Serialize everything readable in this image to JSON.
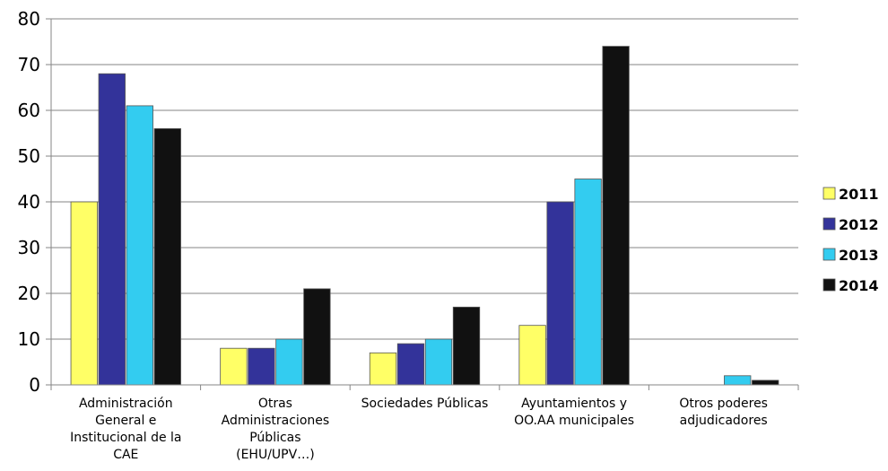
{
  "chart_data": {
    "type": "bar",
    "categories": [
      [
        "Administración",
        "General e",
        "Institucional de la",
        "CAE"
      ],
      [
        "Otras",
        "Administraciones",
        "Públicas",
        "(EHU/UPV…)"
      ],
      [
        "Sociedades Públicas"
      ],
      [
        "Ayuntamientos y",
        "OO.AA municipales"
      ],
      [
        "Otros poderes",
        "adjudicadores"
      ]
    ],
    "series": [
      {
        "name": "2011",
        "values": [
          40,
          8,
          7,
          13,
          0
        ],
        "color": "#ffff66"
      },
      {
        "name": "2012",
        "values": [
          68,
          8,
          9,
          40,
          0
        ],
        "color": "#33339a"
      },
      {
        "name": "2013",
        "values": [
          61,
          10,
          10,
          45,
          2
        ],
        "color": "#33ccf0"
      },
      {
        "name": "2014",
        "values": [
          56,
          21,
          17,
          74,
          1
        ],
        "color": "#111111"
      }
    ],
    "ylim": [
      0,
      80
    ],
    "yticks": [
      0,
      10,
      20,
      30,
      40,
      50,
      60,
      70,
      80
    ],
    "title": "",
    "xlabel": "",
    "ylabel": "",
    "grid": true,
    "legend": "right"
  }
}
